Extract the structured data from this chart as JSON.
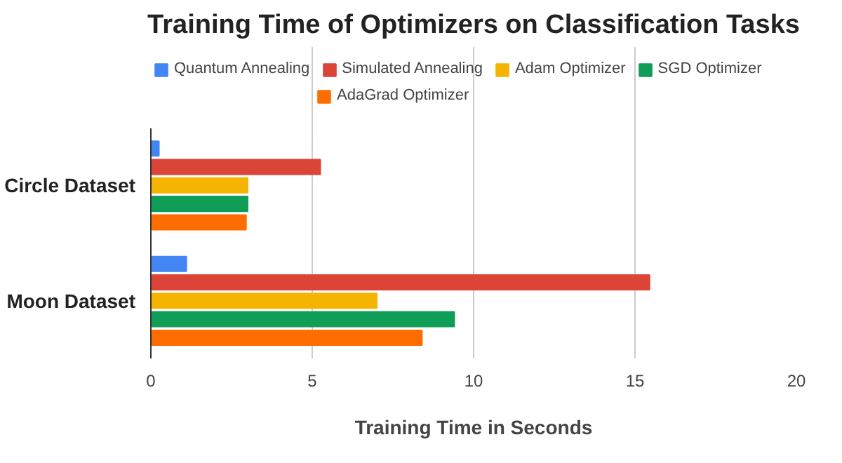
{
  "chart_data": {
    "type": "bar",
    "orientation": "horizontal",
    "title": "Training Time of Optimizers on Classification Tasks",
    "xlabel": "Training Time in Seconds",
    "categories": [
      "Circle Dataset",
      "Moon Dataset"
    ],
    "series": [
      {
        "name": "Quantum Annealing",
        "color": "#4285f4",
        "values": [
          0.25,
          1.1
        ]
      },
      {
        "name": "Simulated Annealing",
        "color": "#db4437",
        "values": [
          5.25,
          15.45
        ]
      },
      {
        "name": "Adam Optimizer",
        "color": "#f4b400",
        "values": [
          3.0,
          7.0
        ]
      },
      {
        "name": "SGD Optimizer",
        "color": "#0f9d58",
        "values": [
          3.0,
          9.4
        ]
      },
      {
        "name": "AdaGrad Optimizer",
        "color": "#ff6d01",
        "values": [
          2.95,
          8.4
        ]
      }
    ],
    "xlim": [
      0,
      20
    ],
    "xticks": [
      0,
      5,
      10,
      15,
      20
    ],
    "grid": "x",
    "legend": "top"
  }
}
